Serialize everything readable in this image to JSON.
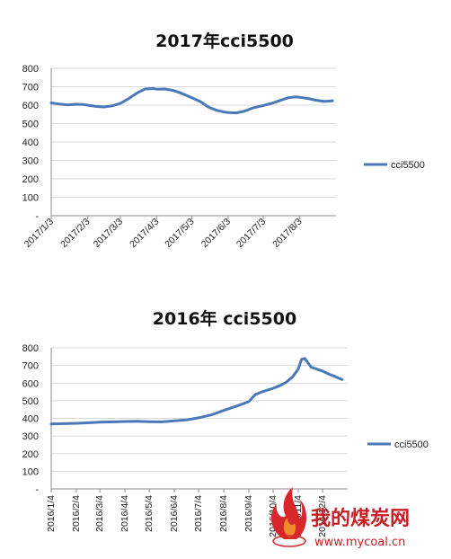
{
  "chart_data": [
    {
      "type": "line",
      "title": "2017年cci5500",
      "xlabel": "",
      "ylabel": "",
      "ylim": [
        0,
        800
      ],
      "y_ticks": [
        "-",
        "100",
        "200",
        "300",
        "400",
        "500",
        "600",
        "700",
        "800"
      ],
      "x_ticks": [
        "2017/1/3",
        "2017/2/3",
        "2017/3/3",
        "2017/4/3",
        "2017/5/3",
        "2017/6/3",
        "2017/7/3",
        "2017/8/3"
      ],
      "grid": true,
      "legend_position": "right",
      "series": [
        {
          "name": "cci5500",
          "color": "#4a78b8",
          "x": [
            "2017/1/3",
            "2017/1/10",
            "2017/1/17",
            "2017/1/24",
            "2017/1/31",
            "2017/2/3",
            "2017/2/10",
            "2017/2/17",
            "2017/2/24",
            "2017/3/3",
            "2017/3/10",
            "2017/3/17",
            "2017/3/24",
            "2017/3/31",
            "2017/4/3",
            "2017/4/10",
            "2017/4/17",
            "2017/4/24",
            "2017/5/3",
            "2017/5/10",
            "2017/5/17",
            "2017/5/24",
            "2017/5/31",
            "2017/6/3",
            "2017/6/10",
            "2017/6/17",
            "2017/6/24",
            "2017/7/3",
            "2017/7/10",
            "2017/7/17",
            "2017/7/24",
            "2017/7/31",
            "2017/8/3",
            "2017/8/10",
            "2017/8/17",
            "2017/8/24",
            "2017/8/31"
          ],
          "values": [
            612,
            606,
            601,
            605,
            603,
            600,
            593,
            590,
            596,
            610,
            635,
            665,
            688,
            690,
            687,
            688,
            680,
            665,
            640,
            620,
            590,
            572,
            562,
            560,
            558,
            568,
            585,
            598,
            610,
            625,
            640,
            645,
            643,
            636,
            627,
            620,
            624
          ]
        }
      ]
    },
    {
      "type": "line",
      "title": "2016年 cci5500",
      "xlabel": "",
      "ylabel": "",
      "ylim": [
        0,
        800
      ],
      "y_ticks": [
        "-",
        "100",
        "200",
        "300",
        "400",
        "500",
        "600",
        "700",
        "800"
      ],
      "x_ticks": [
        "2016/1/4",
        "2016/2/4",
        "2016/3/4",
        "2016/4/4",
        "2016/5/4",
        "2016/6/4",
        "2016/7/4",
        "2016/8/4",
        "2016/9/4",
        "2016/10/4",
        "2016/11/4",
        "2016/12/4"
      ],
      "grid": true,
      "legend_position": "right",
      "series": [
        {
          "name": "cci5500",
          "color": "#4a78b8",
          "x": [
            "2016/1/4",
            "2016/1/20",
            "2016/2/4",
            "2016/2/20",
            "2016/3/4",
            "2016/3/20",
            "2016/4/4",
            "2016/4/20",
            "2016/5/4",
            "2016/5/20",
            "2016/6/4",
            "2016/6/20",
            "2016/7/4",
            "2016/7/20",
            "2016/8/4",
            "2016/8/20",
            "2016/9/4",
            "2016/9/12",
            "2016/9/20",
            "2016/10/4",
            "2016/10/12",
            "2016/10/20",
            "2016/10/28",
            "2016/11/4",
            "2016/11/8",
            "2016/11/12",
            "2016/11/20",
            "2016/12/4",
            "2016/12/12",
            "2016/12/20",
            "2016/12/28"
          ],
          "values": [
            368,
            370,
            372,
            375,
            378,
            380,
            382,
            383,
            381,
            380,
            386,
            392,
            403,
            420,
            445,
            470,
            495,
            535,
            550,
            570,
            585,
            605,
            635,
            680,
            735,
            740,
            690,
            668,
            650,
            636,
            620
          ]
        }
      ]
    }
  ],
  "watermark": {
    "text": "我的煤炭网",
    "url": "www.mycoal.cn"
  }
}
